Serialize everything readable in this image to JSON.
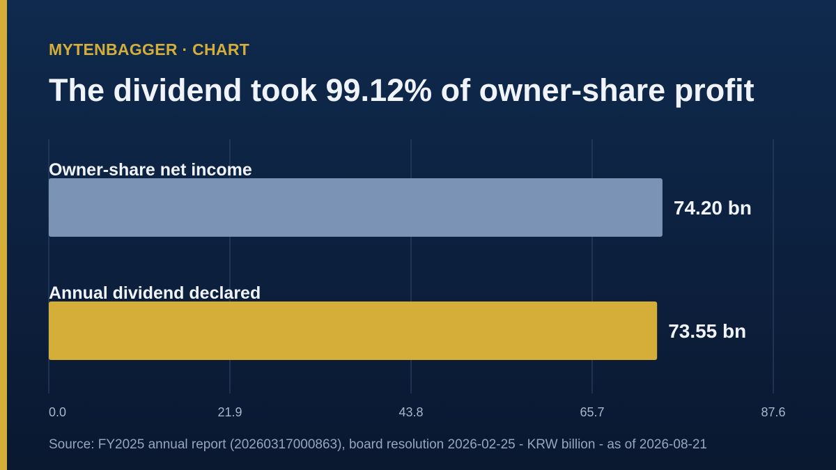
{
  "header": {
    "kicker": "MYTENBAGGER · CHART",
    "title": "The dividend took 99.12% of owner-share profit"
  },
  "footer": {
    "source": "Source: FY2025 annual report (20260317000863), board resolution 2026-02-25 - KRW billion - as of 2026-08-21"
  },
  "colors": {
    "background": "#0f2a4e",
    "accent": "#d4ae38",
    "bar_income": "#7b93b5",
    "bar_dividend": "#d4ae38",
    "gridline": "#34496a",
    "tick_text": "#aab6c8"
  },
  "chart_data": {
    "type": "bar",
    "orientation": "horizontal",
    "title": "The dividend took 99.12% of owner-share profit",
    "categories": [
      "Owner-share net income",
      "Annual dividend declared"
    ],
    "values": [
      74.2,
      73.55
    ],
    "value_labels": [
      "74.20 bn",
      "73.55 bn"
    ],
    "bar_colors": [
      "#7b93b5",
      "#d4ae38"
    ],
    "x_ticks": [
      "0.0",
      "21.9",
      "43.8",
      "65.7",
      "87.6"
    ],
    "xlim": [
      0,
      87.6
    ],
    "unit": "KRW billion",
    "grid": true,
    "legend": "none"
  }
}
